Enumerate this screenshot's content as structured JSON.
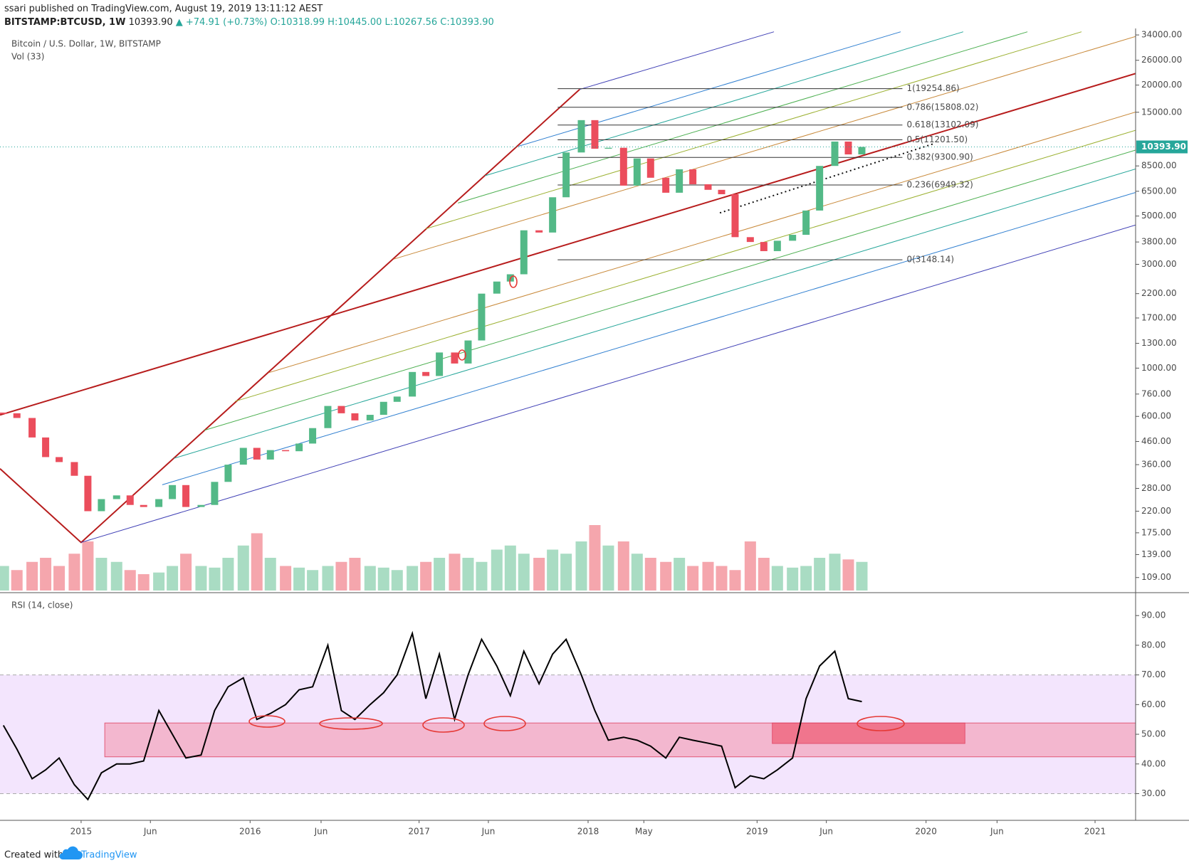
{
  "header": {
    "publisher": "ssari published on TradingView.com, August 19, 2019 13:11:12 AEST"
  },
  "chart_data": {
    "type": "candlestick",
    "title": "Bitcoin / U.S. Dollar, 1W, BITSTAMP",
    "symbol": "BITSTAMP:BTCUSD, 1W",
    "quote": {
      "last": "10393.90",
      "change": "▲ +74.91 (+0.73%)",
      "open": "O:10318.99",
      "high": "H:10445.00",
      "low": "L:10267.56",
      "close": "C:10393.90"
    },
    "x": [
      2014.54,
      2014.62,
      2014.71,
      2014.79,
      2014.87,
      2014.96,
      2015.04,
      2015.12,
      2015.21,
      2015.29,
      2015.37,
      2015.46,
      2015.54,
      2015.62,
      2015.71,
      2015.79,
      2015.87,
      2015.96,
      2016.04,
      2016.12,
      2016.21,
      2016.29,
      2016.37,
      2016.46,
      2016.54,
      2016.62,
      2016.71,
      2016.79,
      2016.87,
      2016.96,
      2017.04,
      2017.12,
      2017.21,
      2017.29,
      2017.37,
      2017.46,
      2017.54,
      2017.62,
      2017.71,
      2017.79,
      2017.87,
      2017.96,
      2018.04,
      2018.12,
      2018.21,
      2018.29,
      2018.37,
      2018.46,
      2018.54,
      2018.62,
      2018.71,
      2018.79,
      2018.87,
      2018.96,
      2019.04,
      2019.12,
      2019.21,
      2019.29,
      2019.37,
      2019.46,
      2019.54,
      2019.62
    ],
    "values": [
      620,
      590,
      480,
      390,
      370,
      320,
      220,
      250,
      260,
      235,
      230,
      250,
      290,
      230,
      235,
      300,
      360,
      430,
      380,
      420,
      415,
      450,
      530,
      670,
      620,
      575,
      610,
      700,
      740,
      960,
      920,
      1180,
      1050,
      1340,
      2200,
      2500,
      2700,
      4300,
      4200,
      6100,
      9800,
      13800,
      10200,
      10300,
      6900,
      9200,
      7500,
      6400,
      8200,
      7000,
      6600,
      6300,
      4000,
      3800,
      3450,
      3850,
      4100,
      5300,
      8500,
      11000,
      9600,
      10393.9
    ],
    "up_color": "#53b987",
    "down_color": "#eb4d5c",
    "log_scale": true,
    "xlim": [
      2014.52,
      2021.24
    ],
    "xticks": [
      2015,
      {
        "value": 2015.41,
        "label": "Jun"
      },
      2016,
      {
        "value": 2016.42,
        "label": "Jun"
      },
      2017,
      {
        "value": 2017.41,
        "label": "Jun"
      },
      2018,
      {
        "value": 2018.33,
        "label": "May"
      },
      2019,
      {
        "value": 2019.41,
        "label": "Jun"
      },
      2020,
      {
        "value": 2020.42,
        "label": "Jun"
      },
      2021
    ],
    "ylim": [
      95,
      35600
    ],
    "yticks": [
      {
        "value": 34000,
        "label": "34000.00"
      },
      {
        "value": 26000,
        "label": "26000.00"
      },
      {
        "value": 20000,
        "label": "20000.00"
      },
      {
        "value": 15000,
        "label": "15000.00"
      },
      {
        "value": 8500,
        "label": "8500.00"
      },
      {
        "value": 6500,
        "label": "6500.00"
      },
      {
        "value": 5000,
        "label": "5000.00"
      },
      {
        "value": 3800,
        "label": "3800.00"
      },
      {
        "value": 3000,
        "label": "3000.00"
      },
      {
        "value": 2200,
        "label": "2200.00"
      },
      {
        "value": 1700,
        "label": "1700.00"
      },
      {
        "value": 1300,
        "label": "1300.00"
      },
      {
        "value": 1000,
        "label": "1000.00"
      },
      {
        "value": 760,
        "label": "760.00"
      },
      {
        "value": 600,
        "label": "600.00"
      },
      {
        "value": 460,
        "label": "460.00"
      },
      {
        "value": 360,
        "label": "360.00"
      },
      {
        "value": 280,
        "label": "280.00"
      },
      {
        "value": 220,
        "label": "220.00"
      },
      {
        "value": 175,
        "label": "175.00"
      },
      {
        "value": 139,
        "label": "139.00"
      },
      {
        "value": 109,
        "label": "109.00"
      }
    ],
    "last_price": {
      "value": 10393.9,
      "label": "10393.90",
      "color": "#26a69a"
    },
    "volume": {
      "label": "Vol (33)",
      "ylim": [
        0,
        100
      ],
      "values": [
        30,
        25,
        35,
        40,
        30,
        45,
        60,
        40,
        35,
        25,
        20,
        22,
        30,
        45,
        30,
        28,
        40,
        55,
        70,
        40,
        30,
        28,
        25,
        30,
        35,
        40,
        30,
        28,
        25,
        30,
        35,
        40,
        45,
        40,
        35,
        50,
        55,
        45,
        40,
        50,
        45,
        60,
        80,
        55,
        60,
        45,
        40,
        35,
        40,
        30,
        35,
        30,
        25,
        60,
        40,
        30,
        28,
        30,
        40,
        45,
        38,
        35
      ]
    },
    "fib_x": [
      2017.82,
      2019.86
    ],
    "fib_levels": [
      {
        "value": 19254.86,
        "label": "1(19254.86)"
      },
      {
        "value": 15808.02,
        "label": "0.786(15808.02)"
      },
      {
        "value": 13102.09,
        "label": "0.618(13102.09)"
      },
      {
        "value": 11201.5,
        "label": "0.5(11201.50)"
      },
      {
        "value": 9300.9,
        "label": "0.382(9300.90)"
      },
      {
        "value": 6949.32,
        "label": "0.236(6949.32)"
      },
      {
        "value": 3148.14,
        "label": "0(3148.14)"
      }
    ],
    "drawings": [
      {
        "color": "#b71c1c",
        "width": 2,
        "points": [
          [
            2014.52,
            609
          ],
          [
            2021.24,
            22600
          ]
        ]
      },
      {
        "color": "#b71c1c",
        "width": 2,
        "points": [
          [
            2014.52,
            345
          ],
          [
            2015.0,
            158
          ],
          [
            2017.95,
            19100
          ]
        ]
      },
      {
        "color": "#3f3fb5",
        "width": 1,
        "points": [
          [
            2015.0,
            158
          ],
          [
            2021.24,
            4550
          ]
        ]
      },
      {
        "color": "#3f3fb5",
        "width": 1,
        "points": [
          [
            2017.95,
            19100
          ],
          [
            2019.1,
            35150
          ]
        ]
      },
      {
        "color": "#2f7fd0",
        "width": 1,
        "points": [
          [
            2017.59,
            10480
          ],
          [
            2019.85,
            35150
          ]
        ]
      },
      {
        "color": "#2f7fd0",
        "width": 1,
        "points": [
          [
            2015.48,
            291
          ],
          [
            2021.24,
            6420
          ]
        ]
      },
      {
        "color": "#26a69a",
        "width": 1,
        "points": [
          [
            2017.39,
            7660
          ],
          [
            2020.22,
            35150
          ]
        ]
      },
      {
        "color": "#26a69a",
        "width": 1,
        "points": [
          [
            2015.55,
            385
          ],
          [
            2021.24,
            8230
          ]
        ]
      },
      {
        "color": "#4caf50",
        "width": 1,
        "points": [
          [
            2017.23,
            5740
          ],
          [
            2020.6,
            35150
          ]
        ]
      },
      {
        "color": "#4caf50",
        "width": 1,
        "points": [
          [
            2015.73,
            518
          ],
          [
            2021.24,
            10050
          ]
        ]
      },
      {
        "color": "#9bb030",
        "width": 1,
        "points": [
          [
            2017.04,
            4370
          ],
          [
            2020.92,
            35150
          ]
        ]
      },
      {
        "color": "#9bb030",
        "width": 1,
        "points": [
          [
            2015.91,
            703
          ],
          [
            2021.24,
            12390
          ]
        ]
      },
      {
        "color": "#c8893a",
        "width": 1,
        "points": [
          [
            2016.85,
            3170
          ],
          [
            2021.24,
            33460
          ]
        ]
      },
      {
        "color": "#c8893a",
        "width": 1,
        "points": [
          [
            2016.11,
            953
          ],
          [
            2021.24,
            15030
          ]
        ]
      },
      {
        "color": "#111111",
        "width": 2,
        "dash": true,
        "points": [
          [
            2018.78,
            5170
          ],
          [
            2020.04,
            10720
          ]
        ]
      }
    ],
    "rsi": {
      "title": "RSI (14, close)",
      "color": "#000000",
      "values": [
        53,
        45,
        35,
        38,
        42,
        33,
        28,
        37,
        40,
        40,
        41,
        58,
        50,
        42,
        43,
        58,
        66,
        69,
        55,
        57,
        60,
        65,
        66,
        80,
        58,
        55,
        60,
        64,
        70,
        84,
        62,
        77,
        55,
        70,
        82,
        73,
        63,
        78,
        67,
        77,
        82,
        70,
        58,
        48,
        49,
        48,
        46,
        42,
        49,
        48,
        47,
        46,
        32,
        36,
        35,
        38,
        42,
        62,
        73,
        78,
        62,
        61
      ],
      "ylim": [
        21,
        97
      ],
      "yticks": [
        {
          "value": 90,
          "label": "90.00"
        },
        {
          "value": 80,
          "label": "80.00"
        },
        {
          "value": 70,
          "label": "70.00"
        },
        {
          "value": 60,
          "label": "60.00"
        },
        {
          "value": 50,
          "label": "50.00"
        },
        {
          "value": 40,
          "label": "40.00"
        },
        {
          "value": 30,
          "label": "30.00"
        }
      ],
      "band": [
        30,
        70
      ],
      "band_color": "#f3e5fd",
      "zones": [
        {
          "x": [
            2015.14,
            2021.24
          ],
          "y": [
            42.4,
            53.8
          ],
          "color": "#f4b0c8"
        },
        {
          "x": [
            2019.09,
            2020.23
          ],
          "y": [
            46.9,
            53.8
          ],
          "color": "#f06a82"
        }
      ]
    }
  },
  "footer": {
    "text": "Created with",
    "brand": "TradingView"
  }
}
